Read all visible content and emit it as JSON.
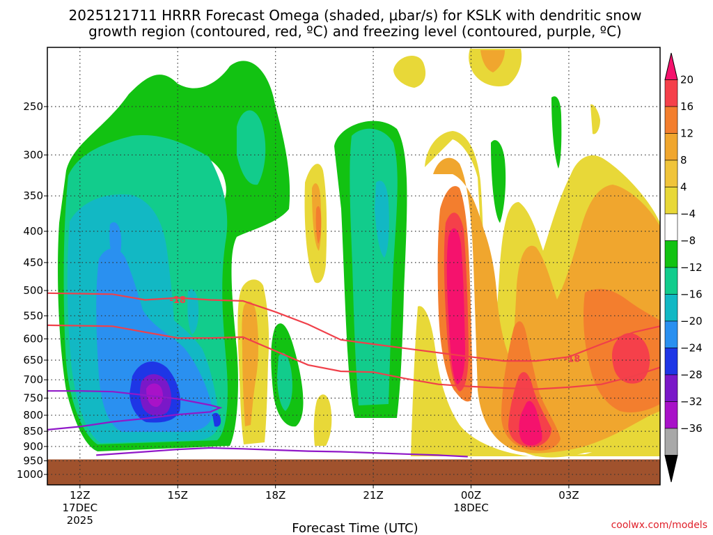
{
  "title": {
    "line1": "2025121711 HRRR Forecast Omega (shaded, μbar/s) for KSLK with dendritic snow",
    "line2": "growth region (contoured, red, ºC) and freezing level (contoured, purple, ºC)"
  },
  "credit": "coolwx.com/models",
  "chart_data": {
    "type": "heatmap",
    "title": "2025121711 HRRR Forecast Omega (shaded, μbar/s) for KSLK with dendritic snow growth region (contoured, red, ºC) and freezing level (contoured, purple, ºC)",
    "xlabel": "Forecast Time (UTC)",
    "ylabel": "",
    "y_scale": "log-pressure (inverted)",
    "y_ticks": [
      250,
      300,
      350,
      400,
      450,
      500,
      550,
      600,
      650,
      700,
      750,
      800,
      850,
      900,
      950,
      1000
    ],
    "x_ticks": [
      {
        "hour": 12,
        "label": "12Z",
        "sub1": "17DEC",
        "sub2": "2025"
      },
      {
        "hour": 15,
        "label": "15Z",
        "sub1": "",
        "sub2": ""
      },
      {
        "hour": 18,
        "label": "18Z",
        "sub1": "",
        "sub2": ""
      },
      {
        "hour": 21,
        "label": "21Z",
        "sub1": "",
        "sub2": ""
      },
      {
        "hour": 24,
        "label": "00Z",
        "sub1": "18DEC",
        "sub2": ""
      },
      {
        "hour": 27,
        "label": "03Z",
        "sub1": "",
        "sub2": ""
      }
    ],
    "x_range_hours": [
      11,
      29.8
    ],
    "y_range_hpa": [
      200,
      1040
    ],
    "grid": "dotted",
    "colorbar": {
      "labels": [
        "20",
        "16",
        "12",
        "8",
        "4",
        "−4",
        "−8",
        "−12",
        "−16",
        "−20",
        "−24",
        "−28",
        "−32",
        "−36"
      ],
      "colors": [
        "#f5126d",
        "#f5404a",
        "#f37e2e",
        "#f0a62e",
        "#f0c43a",
        "#e8d838",
        "#ffffff",
        "#12c212",
        "#12cc8c",
        "#12b8c4",
        "#2a90f0",
        "#1e36e6",
        "#7a18c8",
        "#a812c8",
        "#a8a8a8"
      ]
    },
    "terrain": {
      "top_hpa": 945,
      "bottom_hpa": 1040,
      "color": "#a0522d"
    },
    "dendritic_contour_label": "-18",
    "dendritic_contours_hpa": {
      "upper": [
        [
          11,
          505
        ],
        [
          13,
          507
        ],
        [
          14,
          518
        ],
        [
          15,
          514
        ],
        [
          16,
          518
        ],
        [
          17,
          520
        ],
        [
          18,
          542
        ],
        [
          19,
          568
        ],
        [
          20,
          602
        ],
        [
          21,
          612
        ],
        [
          22,
          622
        ],
        [
          23,
          632
        ],
        [
          24,
          642
        ],
        [
          25,
          652
        ],
        [
          26,
          652
        ],
        [
          27,
          642
        ],
        [
          28,
          612
        ],
        [
          29,
          585
        ],
        [
          29.8,
          572
        ]
      ],
      "lower": [
        [
          11,
          570
        ],
        [
          13,
          572
        ],
        [
          14,
          585
        ],
        [
          15,
          598
        ],
        [
          16,
          598
        ],
        [
          17,
          596
        ],
        [
          18,
          628
        ],
        [
          19,
          662
        ],
        [
          20,
          678
        ],
        [
          21,
          680
        ],
        [
          22,
          697
        ],
        [
          23,
          712
        ],
        [
          24,
          718
        ],
        [
          25,
          722
        ],
        [
          26,
          725
        ],
        [
          27,
          720
        ],
        [
          28,
          712
        ],
        [
          29,
          690
        ],
        [
          29.8,
          668
        ]
      ]
    },
    "freezing_level_hpa": {
      "upper": [
        [
          11,
          730
        ],
        [
          12,
          730
        ],
        [
          13,
          732
        ],
        [
          14,
          742
        ],
        [
          15,
          752
        ],
        [
          16,
          770
        ],
        [
          16.3,
          778
        ],
        [
          16,
          790
        ],
        [
          15,
          798
        ],
        [
          14,
          810
        ],
        [
          13,
          820
        ],
        [
          12,
          835
        ],
        [
          11,
          845
        ]
      ],
      "lower": [
        [
          12.5,
          930
        ],
        [
          14,
          918
        ],
        [
          15,
          910
        ],
        [
          16,
          905
        ],
        [
          17,
          908
        ],
        [
          18,
          912
        ],
        [
          19,
          916
        ],
        [
          20,
          918
        ],
        [
          21,
          922
        ],
        [
          22,
          926
        ],
        [
          23,
          930
        ],
        [
          23.9,
          935
        ]
      ]
    }
  }
}
